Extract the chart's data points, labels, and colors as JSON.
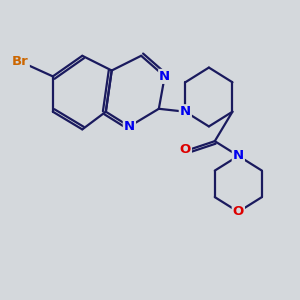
{
  "background_color": "#d4d8dc",
  "bond_color": "#1a1a5e",
  "bond_width": 1.6,
  "atom_colors": {
    "N": "#0000ee",
    "O": "#dd0000",
    "Br": "#cc6600",
    "C": "#1a1a5e"
  },
  "font_size": 9.5,
  "xlim": [
    0,
    10
  ],
  "ylim": [
    0,
    10
  ]
}
